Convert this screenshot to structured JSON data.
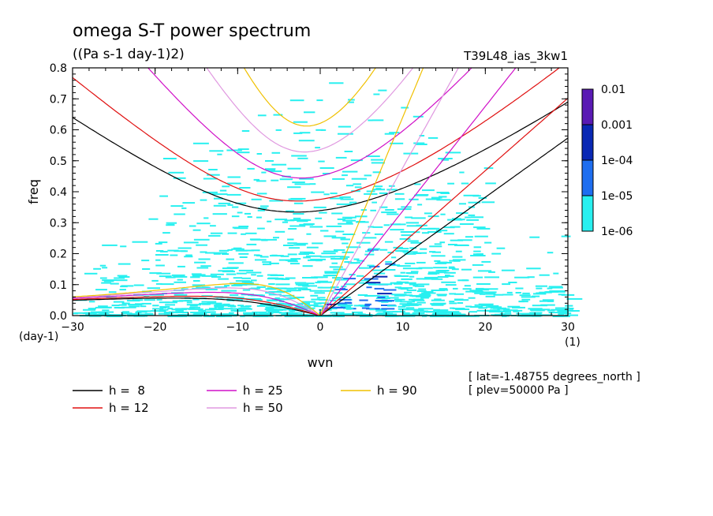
{
  "chart_data": {
    "type": "heatmap",
    "title": "omega S-T power spectrum",
    "subtitle": "((Pa s-1 day-1)2)",
    "dataset_label": "T39L48_ias_3kw1",
    "xlabel": "wvn",
    "ylabel": "freq",
    "x_unit": "(1)",
    "y_unit": "(day-1)",
    "xlim": [
      -30,
      30
    ],
    "ylim": [
      0,
      0.8
    ],
    "x_ticks": [
      "-30",
      "-20",
      "-10",
      "0",
      "10",
      "20",
      "30"
    ],
    "y_ticks": [
      "0.0",
      "0.1",
      "0.2",
      "0.3",
      "0.4",
      "0.5",
      "0.6",
      "0.7",
      "0.8"
    ],
    "colorbar": {
      "labels": [
        "0.01",
        "0.001",
        "1e-04",
        "1e-05",
        "1e-06"
      ],
      "colors": [
        "#5a1ab4",
        "#0a28b4",
        "#1e6ef0",
        "#28f0f0"
      ]
    },
    "grid": false,
    "dispersion_curves": [
      {
        "name": "h =  8",
        "h": 8,
        "color": "#000000"
      },
      {
        "name": "h = 12",
        "h": 12,
        "color": "#e01010"
      },
      {
        "name": "h = 25",
        "h": 25,
        "color": "#d010c8"
      },
      {
        "name": "h = 50",
        "h": 50,
        "color": "#e098e0"
      },
      {
        "name": "h = 90",
        "h": 90,
        "color": "#f0c000"
      }
    ],
    "annotations": [
      "[ lat=-1.48755 degrees_north ]",
      "[ plev=50000 Pa ]"
    ]
  }
}
